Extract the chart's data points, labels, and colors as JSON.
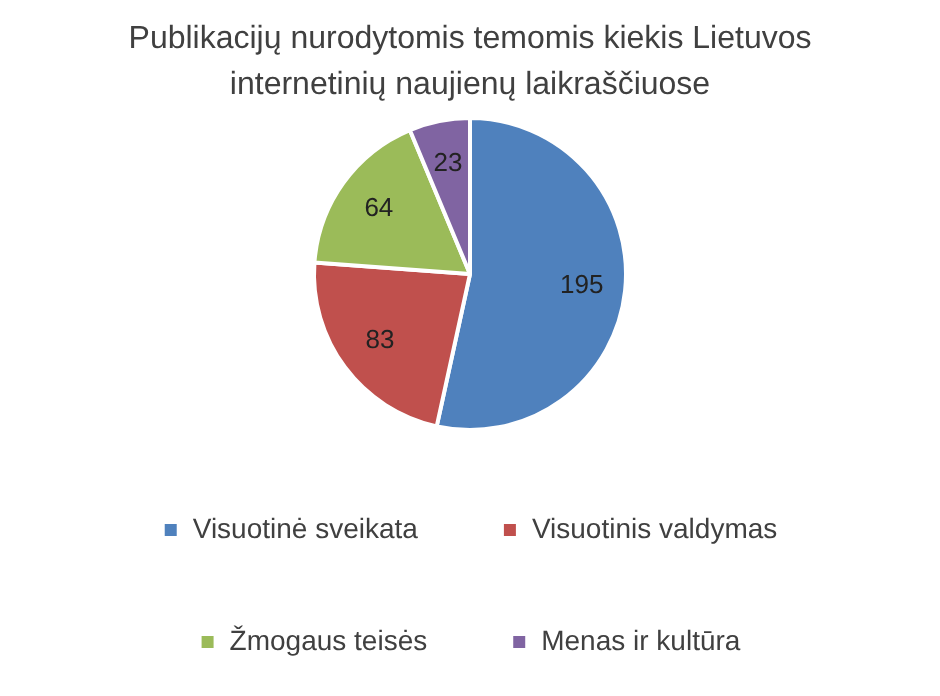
{
  "chart_data": {
    "type": "pie",
    "title": "Publikacijų nurodytomis temomis kiekis Lietuvos internetinių naujienų laikraščiuose",
    "categories": [
      "Visuotinė sveikata",
      "Visuotinis valdymas",
      "Žmogaus teisės",
      "Menas ir kultūra"
    ],
    "values": [
      195,
      83,
      64,
      23
    ],
    "colors": [
      "#4f81bd",
      "#c0504d",
      "#9bbb59",
      "#8064a2"
    ],
    "data_labels": true,
    "legend": "bottom"
  }
}
